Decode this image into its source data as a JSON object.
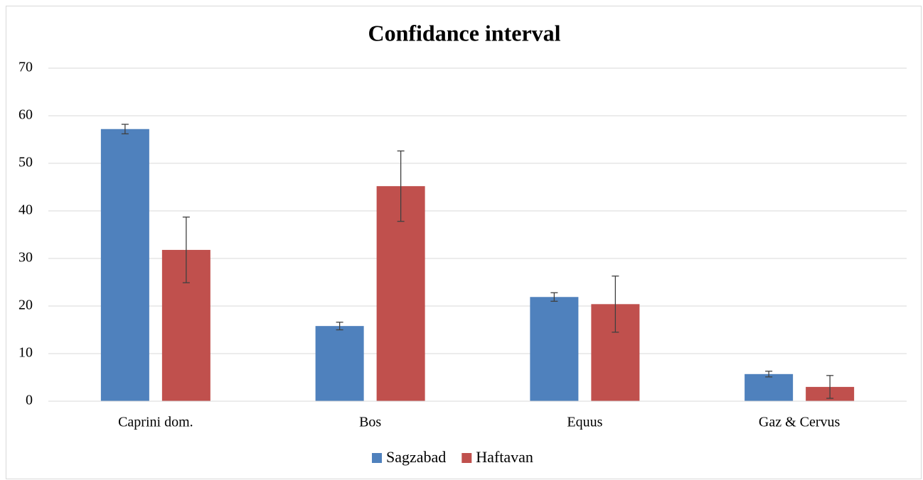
{
  "chart_data": {
    "type": "bar",
    "title": "Confidance interval",
    "categories": [
      "Caprini dom.",
      "Bos",
      "Equus",
      "Gaz & Cervus"
    ],
    "series": [
      {
        "name": "Sagzabad",
        "color": "#4f81bd",
        "values": [
          57.2,
          15.8,
          21.9,
          5.7
        ],
        "errors": [
          1.0,
          0.8,
          0.9,
          0.6
        ]
      },
      {
        "name": "Haftavan",
        "color": "#c0504d",
        "values": [
          31.8,
          45.2,
          20.4,
          3.0
        ],
        "errors": [
          6.9,
          7.4,
          5.9,
          2.4
        ]
      }
    ],
    "ylim": [
      0,
      70
    ],
    "yticks": [
      0,
      10,
      20,
      30,
      40,
      50,
      60,
      70
    ],
    "grid": true,
    "legend": "bottom"
  }
}
